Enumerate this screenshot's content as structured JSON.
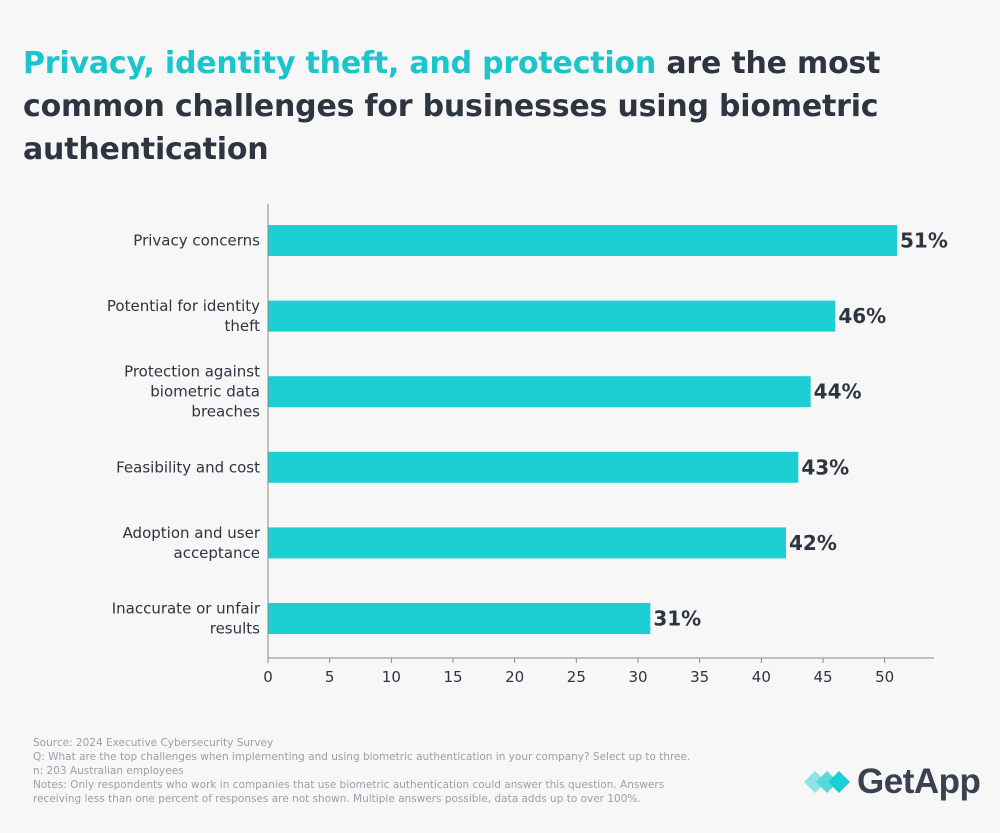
{
  "title": {
    "highlight": "Privacy, identity theft, and protection",
    "rest": " are the most common challenges for businesses using biometric authentication"
  },
  "colors": {
    "bar": "#1ccfd3",
    "highlight": "#1cc4cb",
    "text": "#2e3440",
    "axis": "#888888"
  },
  "chart_data": {
    "type": "bar",
    "orientation": "horizontal",
    "categories": [
      [
        "Privacy concerns"
      ],
      [
        "Potential for identity",
        "theft"
      ],
      [
        "Protection against",
        "biometric data",
        "breaches"
      ],
      [
        "Feasibility and cost"
      ],
      [
        "Adoption and user",
        "acceptance"
      ],
      [
        "Inaccurate or unfair",
        "results"
      ]
    ],
    "values": [
      51,
      46,
      44,
      43,
      42,
      31
    ],
    "value_labels": [
      "51%",
      "46%",
      "44%",
      "43%",
      "42%",
      "31%"
    ],
    "xticks": [
      0,
      5,
      10,
      15,
      20,
      25,
      30,
      35,
      40,
      45,
      50
    ],
    "xlim": [
      0,
      54
    ],
    "grid": false
  },
  "notes": {
    "source": "Source: 2024 Executive Cybersecurity Survey",
    "question": "Q: What are the top challenges when implementing and using biometric authentication in your company? Select up to three.",
    "n": "n: 203 Australian employees",
    "notes1": "Notes: Only respondents who work in companies that use biometric authentication could answer this question. Answers",
    "notes2": "receiving less than one percent of responses are not shown. Multiple answers possible, data adds up to over 100%."
  },
  "brand": {
    "name": "GetApp",
    "icon": "getapp-chevron-icon",
    "colors": [
      "#1ccfd3",
      "#8fe3e6"
    ]
  }
}
